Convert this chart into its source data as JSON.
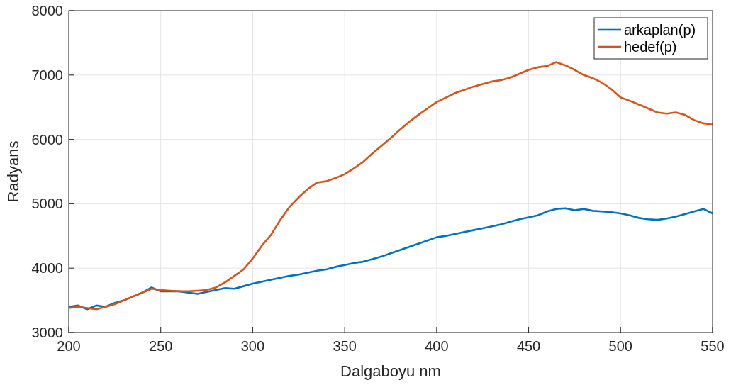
{
  "chart_data": {
    "type": "line",
    "xlabel": "Dalgaboyu nm",
    "ylabel": "Radyans",
    "xlim": [
      200,
      550
    ],
    "xticks": [
      200,
      250,
      300,
      350,
      400,
      450,
      500,
      550
    ],
    "ylim": [
      3000,
      8000
    ],
    "yticks": [
      3000,
      4000,
      5000,
      6000,
      7000,
      8000
    ],
    "grid": true,
    "legend": "top right",
    "marker": "none",
    "line_style": "solid",
    "x": [
      200,
      205,
      210,
      215,
      220,
      225,
      230,
      235,
      240,
      245,
      250,
      255,
      260,
      265,
      270,
      275,
      280,
      285,
      290,
      295,
      300,
      305,
      310,
      315,
      320,
      325,
      330,
      335,
      340,
      345,
      350,
      355,
      360,
      365,
      370,
      375,
      380,
      385,
      390,
      395,
      400,
      405,
      410,
      415,
      420,
      425,
      430,
      435,
      440,
      445,
      450,
      455,
      460,
      465,
      470,
      475,
      480,
      485,
      490,
      495,
      500,
      505,
      510,
      515,
      520,
      525,
      530,
      535,
      540,
      545,
      550
    ],
    "series": [
      {
        "name": "arkaplan(p)",
        "color": "#0072bd",
        "values": [
          3400,
          3420,
          3360,
          3420,
          3400,
          3460,
          3500,
          3560,
          3620,
          3700,
          3640,
          3640,
          3640,
          3620,
          3600,
          3630,
          3660,
          3690,
          3680,
          3720,
          3760,
          3790,
          3820,
          3850,
          3880,
          3900,
          3930,
          3960,
          3980,
          4020,
          4050,
          4080,
          4100,
          4140,
          4180,
          4230,
          4280,
          4330,
          4380,
          4430,
          4480,
          4500,
          4530,
          4560,
          4590,
          4620,
          4650,
          4680,
          4720,
          4760,
          4790,
          4820,
          4880,
          4920,
          4930,
          4900,
          4920,
          4890,
          4880,
          4870,
          4850,
          4820,
          4780,
          4760,
          4750,
          4770,
          4800,
          4840,
          4880,
          4920,
          4850
        ]
      },
      {
        "name": "hedef(p)",
        "color": "#d95319",
        "values": [
          3380,
          3400,
          3380,
          3360,
          3400,
          3440,
          3500,
          3560,
          3620,
          3680,
          3660,
          3650,
          3640,
          3640,
          3650,
          3660,
          3700,
          3780,
          3880,
          3980,
          4150,
          4350,
          4520,
          4750,
          4950,
          5100,
          5230,
          5330,
          5350,
          5400,
          5460,
          5550,
          5650,
          5780,
          5900,
          6020,
          6150,
          6270,
          6380,
          6480,
          6580,
          6650,
          6720,
          6770,
          6820,
          6860,
          6900,
          6920,
          6960,
          7020,
          7080,
          7120,
          7140,
          7200,
          7150,
          7080,
          7000,
          6950,
          6880,
          6780,
          6650,
          6600,
          6540,
          6480,
          6420,
          6400,
          6420,
          6380,
          6300,
          6250,
          6230
        ]
      }
    ]
  }
}
